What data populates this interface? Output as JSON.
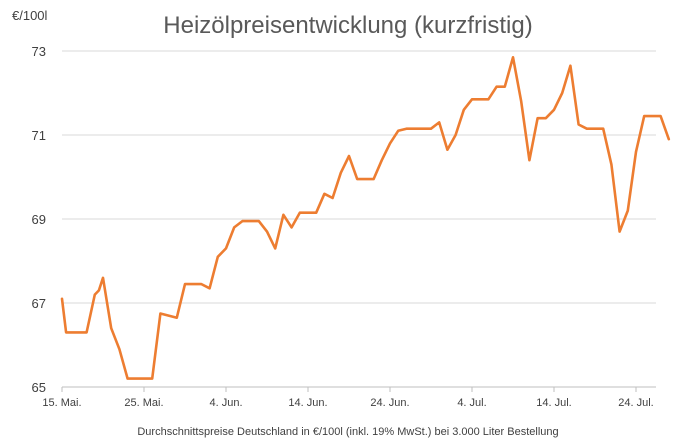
{
  "chart_data": {
    "type": "line",
    "title": "Heizölpreisentwicklung (kurzfristig)",
    "ylabel": "€/100l",
    "xlabel": "Durchschnittspreise Deutschland in €/100l (inkl. 19% MwSt.) bei 3.000 Liter Bestellung",
    "ylim": [
      65,
      73
    ],
    "yticks": [
      65,
      67,
      69,
      71,
      73
    ],
    "grid": true,
    "legend": "none",
    "xticks": [
      {
        "day": 0,
        "label": "15. Mai."
      },
      {
        "day": 10,
        "label": "25. Mai."
      },
      {
        "day": 20,
        "label": "4. Jun."
      },
      {
        "day": 30,
        "label": "14. Jun."
      },
      {
        "day": 40,
        "label": "24. Jun."
      },
      {
        "day": 50,
        "label": "4. Jul."
      },
      {
        "day": 60,
        "label": "14. Jul."
      },
      {
        "day": 70,
        "label": "24. Jul."
      }
    ],
    "series": [
      {
        "color": "#ed7d31",
        "points": [
          [
            0,
            67.1
          ],
          [
            0.5,
            66.3
          ],
          [
            1,
            66.3
          ],
          [
            2,
            66.3
          ],
          [
            3,
            66.3
          ],
          [
            4,
            67.2
          ],
          [
            4.5,
            67.3
          ],
          [
            5,
            67.6
          ],
          [
            6,
            66.4
          ],
          [
            7,
            65.9
          ],
          [
            8,
            65.2
          ],
          [
            9,
            65.2
          ],
          [
            10,
            65.2
          ],
          [
            11,
            65.2
          ],
          [
            12,
            66.75
          ],
          [
            13,
            66.7
          ],
          [
            14,
            66.65
          ],
          [
            15,
            67.45
          ],
          [
            16,
            67.45
          ],
          [
            17,
            67.45
          ],
          [
            18,
            67.35
          ],
          [
            19,
            68.1
          ],
          [
            20,
            68.3
          ],
          [
            21,
            68.8
          ],
          [
            22,
            68.95
          ],
          [
            23,
            68.95
          ],
          [
            24,
            68.95
          ],
          [
            25,
            68.7
          ],
          [
            26,
            68.3
          ],
          [
            27,
            69.1
          ],
          [
            28,
            68.8
          ],
          [
            29,
            69.15
          ],
          [
            30,
            69.15
          ],
          [
            31,
            69.15
          ],
          [
            32,
            69.6
          ],
          [
            33,
            69.5
          ],
          [
            34,
            70.1
          ],
          [
            35,
            70.5
          ],
          [
            36,
            69.95
          ],
          [
            37,
            69.95
          ],
          [
            38,
            69.95
          ],
          [
            39,
            70.4
          ],
          [
            40,
            70.8
          ],
          [
            41,
            71.1
          ],
          [
            42,
            71.15
          ],
          [
            43,
            71.15
          ],
          [
            44,
            71.15
          ],
          [
            45,
            71.15
          ],
          [
            46,
            71.3
          ],
          [
            47,
            70.65
          ],
          [
            48,
            71.0
          ],
          [
            49,
            71.6
          ],
          [
            50,
            71.85
          ],
          [
            51,
            71.85
          ],
          [
            52,
            71.85
          ],
          [
            53,
            72.15
          ],
          [
            54,
            72.15
          ],
          [
            55,
            72.85
          ],
          [
            56,
            71.8
          ],
          [
            57,
            70.4
          ],
          [
            58,
            71.4
          ],
          [
            59,
            71.4
          ],
          [
            60,
            71.6
          ],
          [
            61,
            72.0
          ],
          [
            62,
            72.65
          ],
          [
            63,
            71.25
          ],
          [
            64,
            71.15
          ],
          [
            65,
            71.15
          ],
          [
            66,
            71.15
          ],
          [
            67,
            70.3
          ],
          [
            68,
            68.7
          ],
          [
            69,
            69.2
          ],
          [
            70,
            70.6
          ],
          [
            71,
            71.45
          ],
          [
            72,
            71.45
          ],
          [
            73,
            71.45
          ],
          [
            74,
            70.9
          ]
        ]
      }
    ]
  }
}
